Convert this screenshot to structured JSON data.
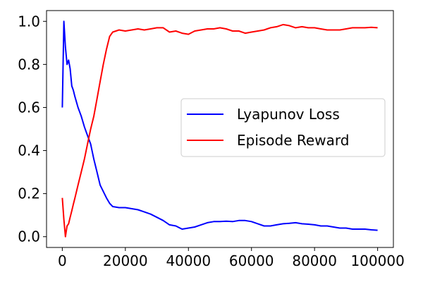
{
  "chart_data": {
    "type": "line",
    "title": "",
    "xlabel": "",
    "ylabel": "",
    "xlim": [
      -5000,
      105000
    ],
    "ylim": [
      -0.05,
      1.05
    ],
    "x_ticks": [
      0,
      20000,
      40000,
      60000,
      80000,
      100000
    ],
    "x_tick_labels": [
      "0",
      "20000",
      "40000",
      "60000",
      "80000",
      "100000"
    ],
    "y_ticks": [
      0.0,
      0.2,
      0.4,
      0.6,
      0.8,
      1.0
    ],
    "y_tick_labels": [
      "0.0",
      "0.2",
      "0.4",
      "0.6",
      "0.8",
      "1.0"
    ],
    "grid": false,
    "legend_position": "center-right",
    "series": [
      {
        "name": "Lyapunov Loss",
        "color": "#0000ff",
        "x": [
          0,
          500,
          1000,
          1500,
          2000,
          2500,
          3000,
          3500,
          4000,
          5000,
          6000,
          7000,
          8000,
          9000,
          10000,
          11000,
          12000,
          13000,
          14000,
          15000,
          16000,
          18000,
          20000,
          22000,
          24000,
          26000,
          28000,
          30000,
          32000,
          34000,
          36000,
          38000,
          40000,
          42000,
          44000,
          46000,
          48000,
          50000,
          52000,
          54000,
          56000,
          58000,
          60000,
          62000,
          64000,
          66000,
          68000,
          70000,
          72000,
          74000,
          76000,
          78000,
          80000,
          82000,
          84000,
          86000,
          88000,
          90000,
          92000,
          94000,
          96000,
          98000,
          100000
        ],
        "values": [
          0.6,
          1.0,
          0.88,
          0.8,
          0.82,
          0.78,
          0.7,
          0.68,
          0.65,
          0.6,
          0.56,
          0.51,
          0.47,
          0.43,
          0.36,
          0.3,
          0.24,
          0.21,
          0.18,
          0.155,
          0.14,
          0.135,
          0.135,
          0.13,
          0.125,
          0.115,
          0.105,
          0.09,
          0.075,
          0.055,
          0.05,
          0.035,
          0.04,
          0.045,
          0.055,
          0.065,
          0.07,
          0.07,
          0.072,
          0.07,
          0.075,
          0.075,
          0.07,
          0.06,
          0.05,
          0.05,
          0.055,
          0.06,
          0.062,
          0.065,
          0.06,
          0.058,
          0.055,
          0.05,
          0.05,
          0.045,
          0.04,
          0.04,
          0.035,
          0.035,
          0.035,
          0.032,
          0.03
        ]
      },
      {
        "name": "Episode Reward",
        "color": "#ff0000",
        "x": [
          0,
          500,
          1000,
          1500,
          2000,
          2500,
          3000,
          3500,
          4000,
          5000,
          6000,
          7000,
          8000,
          9000,
          10000,
          11000,
          12000,
          13000,
          14000,
          15000,
          16000,
          18000,
          20000,
          22000,
          24000,
          26000,
          28000,
          30000,
          32000,
          34000,
          36000,
          38000,
          40000,
          42000,
          44000,
          46000,
          48000,
          50000,
          52000,
          54000,
          56000,
          58000,
          60000,
          62000,
          64000,
          66000,
          68000,
          70000,
          72000,
          74000,
          76000,
          78000,
          80000,
          82000,
          84000,
          86000,
          88000,
          90000,
          92000,
          94000,
          96000,
          98000,
          100000
        ],
        "values": [
          0.18,
          0.08,
          0.0,
          0.05,
          0.06,
          0.09,
          0.12,
          0.15,
          0.18,
          0.24,
          0.3,
          0.36,
          0.43,
          0.5,
          0.56,
          0.64,
          0.72,
          0.8,
          0.87,
          0.93,
          0.95,
          0.96,
          0.955,
          0.96,
          0.965,
          0.96,
          0.965,
          0.97,
          0.97,
          0.95,
          0.955,
          0.945,
          0.94,
          0.955,
          0.96,
          0.965,
          0.965,
          0.97,
          0.965,
          0.955,
          0.955,
          0.945,
          0.95,
          0.955,
          0.96,
          0.97,
          0.975,
          0.985,
          0.98,
          0.97,
          0.975,
          0.97,
          0.97,
          0.965,
          0.96,
          0.96,
          0.96,
          0.965,
          0.97,
          0.97,
          0.97,
          0.972,
          0.97
        ]
      }
    ]
  }
}
